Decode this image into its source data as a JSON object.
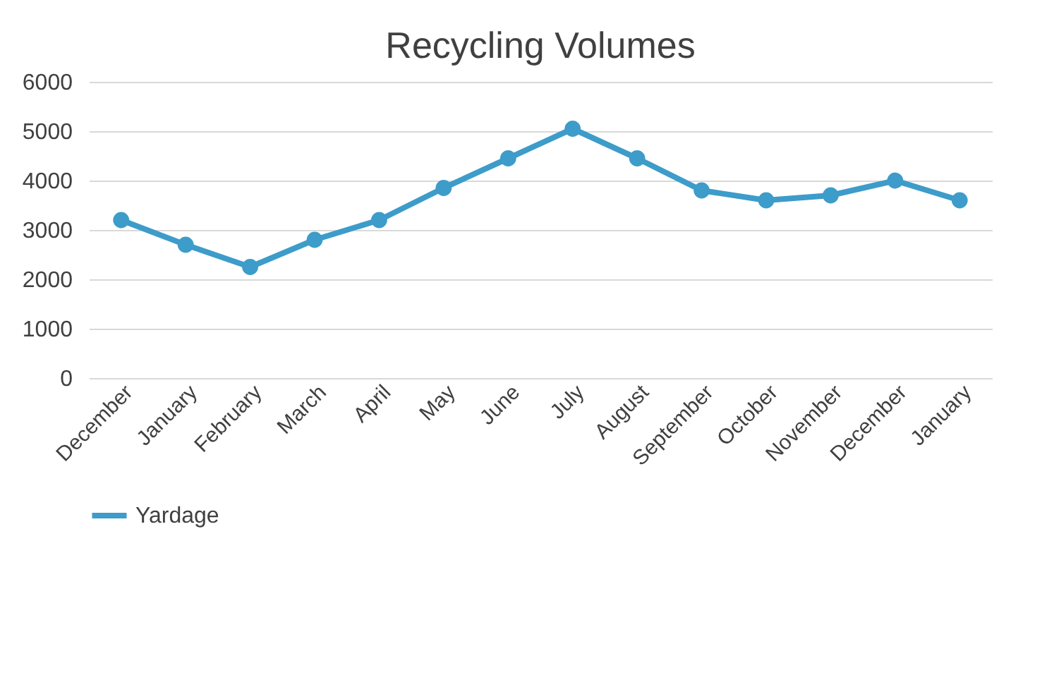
{
  "chart_data": {
    "type": "line",
    "title": "Recycling Volumes",
    "categories": [
      "December",
      "January",
      "February",
      "March",
      "April",
      "May",
      "June",
      "July",
      "August",
      "September",
      "October",
      "November",
      "December",
      "January"
    ],
    "series": [
      {
        "name": "Yardage",
        "color": "#3d9cc9",
        "values": [
          3200,
          2700,
          2250,
          2800,
          3200,
          3850,
          4450,
          5050,
          4450,
          3800,
          3600,
          3700,
          4000,
          3600
        ]
      }
    ],
    "ylim": [
      0,
      6000
    ],
    "yticks": [
      0,
      1000,
      2000,
      3000,
      4000,
      5000,
      6000
    ],
    "grid": "y",
    "legend": "bottom",
    "marker": "circle",
    "line_style": "solid"
  }
}
